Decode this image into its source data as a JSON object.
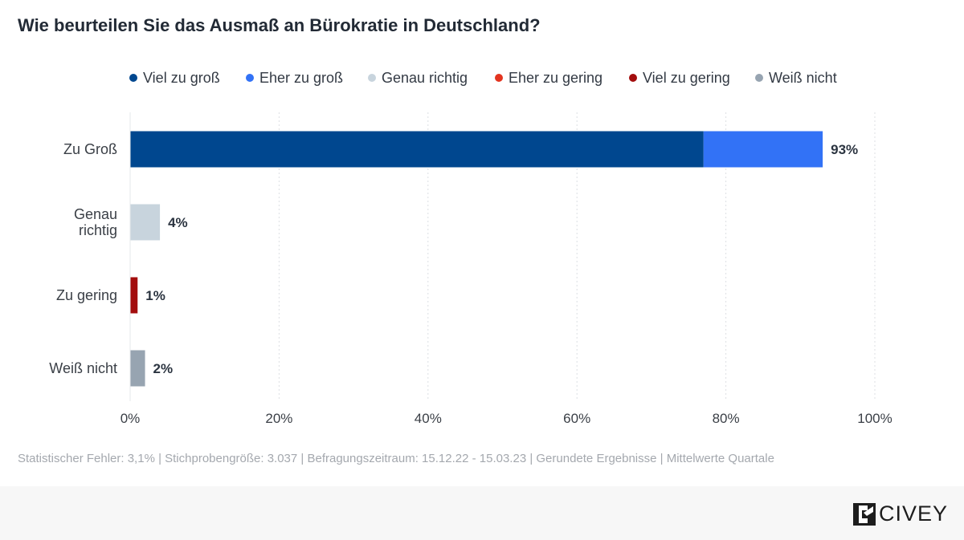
{
  "title": "Wie beurteilen Sie das Ausmaß an Bürokratie in Deutschland?",
  "legend": [
    {
      "label": "Viel zu groß",
      "color": "#00478f"
    },
    {
      "label": "Eher zu groß",
      "color": "#3272f6"
    },
    {
      "label": "Genau richtig",
      "color": "#c8d4dd"
    },
    {
      "label": "Eher zu gering",
      "color": "#e3341f"
    },
    {
      "label": "Viel zu gering",
      "color": "#a30d0d"
    },
    {
      "label": "Weiß nicht",
      "color": "#97a4b1"
    }
  ],
  "chart_data": {
    "type": "bar",
    "orientation": "horizontal",
    "stacked": true,
    "categories": [
      "Zu Groß",
      "Genau richtig",
      "Zu gering",
      "Weiß nicht"
    ],
    "series": [
      {
        "name": "Viel zu groß",
        "color": "#00478f",
        "values": [
          77,
          0,
          0,
          0
        ]
      },
      {
        "name": "Eher zu groß",
        "color": "#3272f6",
        "values": [
          16,
          0,
          0,
          0
        ]
      },
      {
        "name": "Genau richtig",
        "color": "#c8d4dd",
        "values": [
          0,
          4,
          0,
          0
        ]
      },
      {
        "name": "Eher zu gering",
        "color": "#e3341f",
        "values": [
          0,
          0,
          0,
          0
        ]
      },
      {
        "name": "Viel zu gering",
        "color": "#a30d0d",
        "values": [
          0,
          0,
          1,
          0
        ]
      },
      {
        "name": "Weiß nicht",
        "color": "#97a4b1",
        "values": [
          0,
          0,
          0,
          2
        ]
      }
    ],
    "totals_labels": [
      "93%",
      "4%",
      "1%",
      "2%"
    ],
    "xlim": [
      0,
      100
    ],
    "xticks": [
      0,
      20,
      40,
      60,
      80,
      100
    ],
    "xtick_labels": [
      "0%",
      "20%",
      "40%",
      "60%",
      "80%",
      "100%"
    ],
    "grid": true
  },
  "footnote": "Statistischer Fehler: 3,1% | Stichprobengröße: 3.037 | Befragungszeitraum: 15.12.22 - 15.03.23 | Gerundete Ergebnisse | Mittelwerte Quartale",
  "brand": {
    "name": "CIVEY",
    "icon": "civey-logo-icon"
  }
}
